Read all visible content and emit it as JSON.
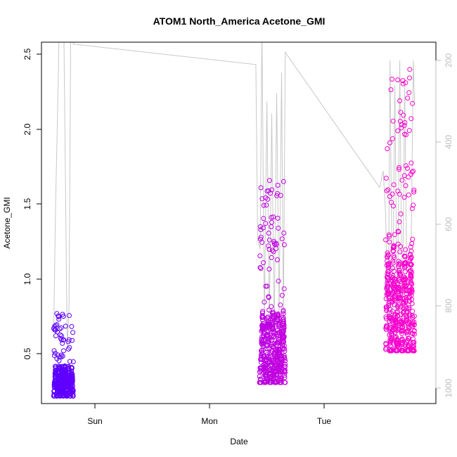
{
  "chart_data": {
    "type": "scatter",
    "title": "ATOM1 North_America Acetone_GMI",
    "xlabel": "Date",
    "ylabel": "Acetone_GMI",
    "x_ticks": [
      "Sun",
      "Mon",
      "Tue"
    ],
    "y_ticks": [
      "0.5",
      "1.0",
      "1.5",
      "2.0",
      "2.5"
    ],
    "y2_ticks": [
      "200",
      "400",
      "600",
      "800",
      "1000"
    ],
    "xlim_hours": [
      -14.4,
      50.0
    ],
    "ylim": [
      0.2,
      2.6
    ],
    "y2_range": [
      140,
      1030
    ],
    "y2_reversed": true,
    "grid": false,
    "legend": "none",
    "color_ramp": [
      "#5a00ff",
      "#ff00cc"
    ],
    "pressure_color": "#c8c8c8",
    "flight_segments": [
      {
        "t0": -12.4,
        "t1": -9.2,
        "ymin": 0.25,
        "ymax": 0.8,
        "peaks": 6,
        "seed": 11
      },
      {
        "t0": 21.2,
        "t1": 25.4,
        "ymin": 0.34,
        "ymax": 1.69,
        "peaks": 5,
        "seed": 23
      },
      {
        "t0": 41.8,
        "t1": 46.5,
        "ymin": 0.55,
        "ymax": 2.5,
        "peaks": 5,
        "seed": 37
      }
    ],
    "pressure_trace": [
      [
        -12.4,
        860
      ],
      [
        -12.1,
        560
      ],
      [
        -11.6,
        200
      ],
      [
        -11.5,
        60
      ],
      [
        -10.8,
        60
      ],
      [
        -10.2,
        900
      ],
      [
        -9.9,
        800
      ],
      [
        -9.6,
        60
      ],
      [
        -9.2,
        160
      ],
      [
        20.6,
        210
      ],
      [
        20.9,
        640
      ],
      [
        21.3,
        660
      ],
      [
        21.6,
        120
      ],
      [
        22.0,
        840
      ],
      [
        22.4,
        300
      ],
      [
        22.8,
        840
      ],
      [
        23.2,
        330
      ],
      [
        23.6,
        870
      ],
      [
        24.0,
        280
      ],
      [
        24.4,
        820
      ],
      [
        24.8,
        230
      ],
      [
        25.1,
        840
      ],
      [
        25.4,
        180
      ],
      [
        40.8,
        510
      ],
      [
        41.4,
        470
      ],
      [
        41.8,
        580
      ],
      [
        42.2,
        900
      ],
      [
        42.5,
        200
      ],
      [
        42.9,
        860
      ],
      [
        43.3,
        260
      ],
      [
        43.7,
        880
      ],
      [
        44.1,
        200
      ],
      [
        44.5,
        860
      ],
      [
        44.9,
        260
      ],
      [
        45.3,
        820
      ],
      [
        45.8,
        870
      ],
      [
        46.3,
        200
      ],
      [
        46.5,
        300
      ]
    ]
  }
}
